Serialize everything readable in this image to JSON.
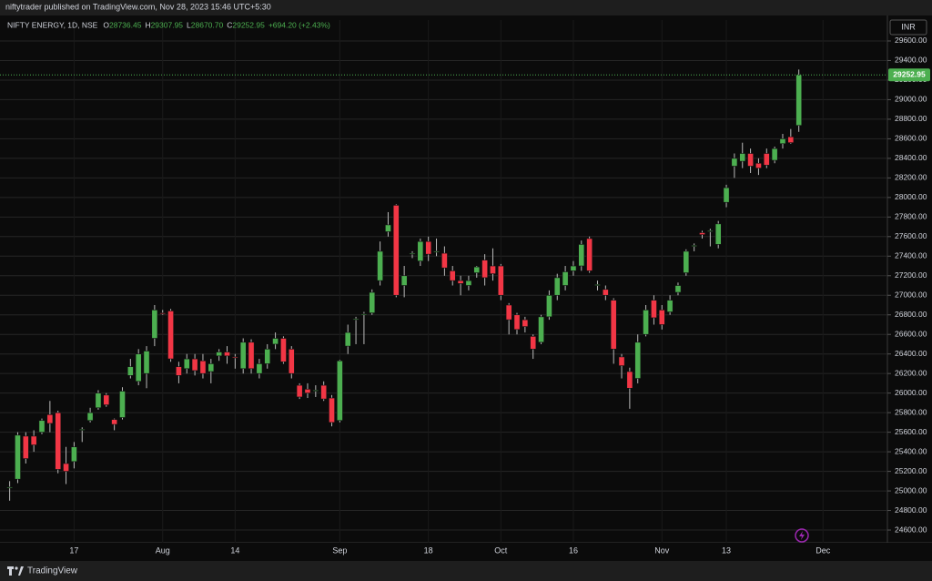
{
  "header": {
    "publisher": "niftytrader published on TradingView.com, Nov 28, 2023 15:46 UTC+5:30"
  },
  "footer": {
    "brand": "TradingView"
  },
  "chart_data": {
    "type": "candlestick",
    "symbol": "NIFTY ENERGY, 1D, NSE",
    "ohlc_legend": [
      {
        "label": "O",
        "value": "28736.45"
      },
      {
        "label": "H",
        "value": "29307.95"
      },
      {
        "label": "L",
        "value": "28670.70"
      },
      {
        "label": "C",
        "value": "29252.95"
      }
    ],
    "change": "+694.20 (+2.43%)",
    "currency": "INR",
    "last_price": 29252.95,
    "up_color": "#4caf50",
    "down_color": "#f23645",
    "grid": true,
    "open": [
      25030,
      25120,
      25560,
      25560,
      25600,
      25780,
      25800,
      25280,
      25300,
      25620,
      25720,
      25850,
      25980,
      25730,
      25750,
      26180,
      26120,
      26200,
      26560,
      26820,
      26840,
      26270,
      26250,
      26350,
      26330,
      26220,
      26380,
      26420,
      26370,
      26250,
      26520,
      26200,
      26300,
      26500,
      26560,
      26450,
      26080,
      26040,
      26020,
      26080,
      25950,
      25720,
      26480,
      26750,
      26800,
      26820,
      27150,
      27650,
      27920,
      27100,
      27420,
      27350,
      27550,
      27440,
      27430,
      27250,
      27150,
      27100,
      27230,
      27360,
      27300,
      27300,
      26900,
      26800,
      26750,
      26580,
      26520,
      26780,
      27000,
      27100,
      27250,
      27300,
      27580,
      27100,
      27060,
      26950,
      26370,
      26220,
      26150,
      26600,
      26950,
      26850,
      26830,
      27030,
      27230,
      27500,
      27640,
      27650,
      27520,
      27950,
      28320,
      28370,
      28450,
      28350,
      28450,
      28380,
      28550,
      28620,
      28736.45
    ],
    "high": [
      25100,
      25600,
      25600,
      25620,
      25740,
      25920,
      25820,
      25450,
      25500,
      25650,
      25850,
      26030,
      26000,
      25740,
      26060,
      26350,
      26450,
      26480,
      26900,
      26850,
      26860,
      26320,
      26400,
      26400,
      26400,
      26350,
      26450,
      26480,
      26400,
      26560,
      26550,
      26350,
      26500,
      26620,
      26580,
      26480,
      26100,
      26100,
      26080,
      26120,
      25980,
      26340,
      26700,
      26780,
      26830,
      27060,
      27550,
      27850,
      27930,
      27300,
      27450,
      27580,
      27600,
      27580,
      27500,
      27300,
      27200,
      27200,
      27300,
      27420,
      27480,
      27320,
      26920,
      26820,
      26780,
      26600,
      26800,
      27050,
      27220,
      27300,
      27350,
      27560,
      27600,
      27150,
      27100,
      26970,
      26400,
      26260,
      26600,
      26900,
      27000,
      26900,
      27000,
      27130,
      27470,
      27530,
      27660,
      27680,
      27760,
      28130,
      28450,
      28560,
      28500,
      28400,
      28500,
      28520,
      28650,
      28700,
      29307.95
    ],
    "low": [
      24900,
      25080,
      25280,
      25400,
      25580,
      25600,
      25180,
      25070,
      25230,
      25500,
      25700,
      25830,
      25860,
      25620,
      25730,
      26150,
      26080,
      26050,
      26480,
      26800,
      26320,
      26100,
      26200,
      26180,
      26150,
      26100,
      26330,
      26300,
      26250,
      26200,
      26200,
      26150,
      26250,
      26450,
      26300,
      26150,
      25940,
      25950,
      25960,
      25920,
      25660,
      25700,
      26400,
      26500,
      26500,
      26800,
      27100,
      27600,
      26980,
      26980,
      27380,
      27300,
      27350,
      27400,
      27200,
      27100,
      27000,
      27050,
      27180,
      27100,
      27150,
      26950,
      26600,
      26600,
      26620,
      26350,
      26500,
      26750,
      26950,
      27050,
      27200,
      27250,
      27230,
      27050,
      26950,
      26300,
      26150,
      25840,
      26100,
      26580,
      26700,
      26650,
      26800,
      27000,
      27200,
      27450,
      27580,
      27500,
      27480,
      27900,
      28200,
      28300,
      28250,
      28230,
      28300,
      28350,
      28500,
      28550,
      28670.7
    ],
    "close": [
      25040,
      25570,
      25330,
      25470,
      25720,
      25690,
      25220,
      25200,
      25450,
      25630,
      25800,
      26000,
      25880,
      25680,
      26020,
      26270,
      26400,
      26430,
      26850,
      26810,
      26350,
      26180,
      26350,
      26230,
      26200,
      26300,
      26420,
      26380,
      26360,
      26520,
      26250,
      26300,
      26450,
      26560,
      26320,
      26200,
      25960,
      26000,
      26030,
      25940,
      25700,
      26330,
      26620,
      26760,
      26810,
      27030,
      27450,
      27720,
      27000,
      27200,
      27430,
      27550,
      27420,
      27450,
      27280,
      27150,
      27120,
      27150,
      27290,
      27180,
      27220,
      27000,
      26750,
      26650,
      26680,
      26450,
      26780,
      27000,
      27180,
      27240,
      27300,
      27520,
      27250,
      27110,
      27000,
      26450,
      26280,
      26050,
      26520,
      26850,
      26770,
      26700,
      26950,
      27100,
      27450,
      27510,
      27620,
      27660,
      27730,
      28100,
      28400,
      28450,
      28320,
      28300,
      28330,
      28500,
      28600,
      28560,
      29252.95
    ],
    "xlim": [
      -1.2,
      109
    ],
    "xticks": [
      {
        "value": 8,
        "label": "17"
      },
      {
        "value": 19,
        "label": "Aug"
      },
      {
        "value": 28,
        "label": "14"
      },
      {
        "value": 41,
        "label": "Sep"
      },
      {
        "value": 52,
        "label": "18"
      },
      {
        "value": 61,
        "label": "Oct"
      },
      {
        "value": 70,
        "label": "16"
      },
      {
        "value": 81,
        "label": "Nov"
      },
      {
        "value": 89,
        "label": "13"
      },
      {
        "value": 101,
        "label": "Dec"
      }
    ],
    "ylim": [
      24470,
      29814
    ],
    "yticks": [
      {
        "value": 24600,
        "label": "24600.00"
      },
      {
        "value": 24800,
        "label": "24800.00"
      },
      {
        "value": 25000,
        "label": "25000.00"
      },
      {
        "value": 25200,
        "label": "25200.00"
      },
      {
        "value": 25400,
        "label": "25400.00"
      },
      {
        "value": 25600,
        "label": "25600.00"
      },
      {
        "value": 25800,
        "label": "25800.00"
      },
      {
        "value": 26000,
        "label": "26000.00"
      },
      {
        "value": 26200,
        "label": "26200.00"
      },
      {
        "value": 26400,
        "label": "26400.00"
      },
      {
        "value": 26600,
        "label": "26600.00"
      },
      {
        "value": 26800,
        "label": "26800.00"
      },
      {
        "value": 27000,
        "label": "27000.00"
      },
      {
        "value": 27200,
        "label": "27200.00"
      },
      {
        "value": 27400,
        "label": "27400.00"
      },
      {
        "value": 27600,
        "label": "27600.00"
      },
      {
        "value": 27800,
        "label": "27800.00"
      },
      {
        "value": 28000,
        "label": "28000.00"
      },
      {
        "value": 28200,
        "label": "28200.00"
      },
      {
        "value": 28400,
        "label": "28400.00"
      },
      {
        "value": 28600,
        "label": "28600.00"
      },
      {
        "value": 28800,
        "label": "28800.00"
      },
      {
        "value": 29000,
        "label": "29000.00"
      },
      {
        "value": 29200,
        "label": "29200.00"
      },
      {
        "value": 29400,
        "label": "29400.00"
      },
      {
        "value": 29600,
        "label": "29600.00"
      }
    ]
  }
}
